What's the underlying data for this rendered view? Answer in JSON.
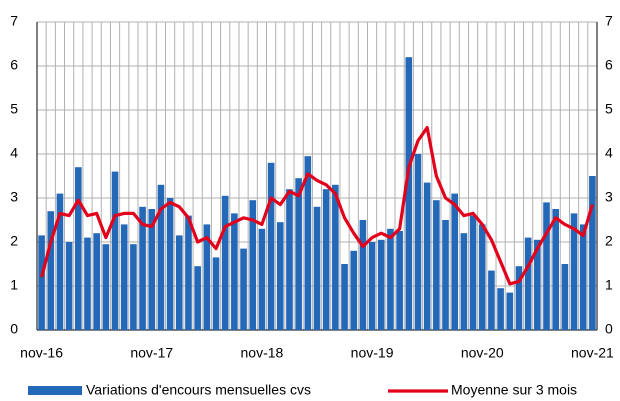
{
  "chart_data": {
    "type": "bar_line",
    "categories": [
      "nov-16",
      null,
      null,
      null,
      null,
      null,
      null,
      null,
      null,
      null,
      null,
      null,
      "nov-17",
      null,
      null,
      null,
      null,
      null,
      null,
      null,
      null,
      null,
      null,
      null,
      "nov-18",
      null,
      null,
      null,
      null,
      null,
      null,
      null,
      null,
      null,
      null,
      null,
      "nov-19",
      null,
      null,
      null,
      null,
      null,
      null,
      null,
      null,
      null,
      null,
      null,
      "nov-20",
      null,
      null,
      null,
      null,
      null,
      null,
      null,
      null,
      null,
      null,
      null,
      "nov-21"
    ],
    "series": [
      {
        "name": "Variations d'encours mensuelles cvs",
        "type": "bar",
        "color": "#2468b8",
        "values": [
          2.15,
          2.7,
          3.1,
          2.0,
          3.7,
          2.1,
          2.2,
          1.95,
          3.6,
          2.4,
          1.95,
          2.8,
          2.75,
          3.3,
          3.0,
          2.15,
          2.6,
          1.45,
          2.4,
          1.65,
          3.05,
          2.65,
          1.85,
          2.95,
          2.3,
          3.8,
          2.45,
          3.2,
          3.45,
          3.95,
          2.8,
          3.2,
          3.3,
          1.5,
          1.8,
          2.5,
          2.0,
          2.05,
          2.3,
          2.25,
          6.2,
          4.0,
          3.35,
          2.95,
          2.5,
          3.1,
          2.2,
          2.6,
          2.4,
          1.35,
          0.95,
          0.85,
          1.45,
          2.1,
          2.05,
          2.9,
          2.75,
          1.5,
          2.65,
          2.4,
          3.5
        ]
      },
      {
        "name": "Moyenne sur 3 mois",
        "type": "line",
        "color": "#e3001b",
        "values": [
          1.2,
          2.0,
          2.65,
          2.6,
          2.95,
          2.6,
          2.65,
          2.1,
          2.6,
          2.65,
          2.65,
          2.4,
          2.35,
          2.75,
          2.9,
          2.8,
          2.55,
          2.0,
          2.1,
          1.85,
          2.35,
          2.45,
          2.55,
          2.5,
          2.4,
          3.0,
          2.85,
          3.15,
          3.05,
          3.55,
          3.4,
          3.3,
          3.1,
          2.55,
          2.2,
          1.9,
          2.1,
          2.2,
          2.1,
          2.3,
          3.7,
          4.3,
          4.6,
          3.5,
          3.0,
          2.85,
          2.6,
          2.65,
          2.4,
          2.05,
          1.55,
          1.05,
          1.1,
          1.45,
          1.85,
          2.2,
          2.55,
          2.4,
          2.3,
          2.15,
          2.85
        ]
      }
    ],
    "ylim": [
      0,
      7
    ],
    "yticks": [
      0,
      1,
      2,
      3,
      4,
      5,
      6,
      7
    ],
    "y2lim": [
      0,
      7
    ],
    "y2ticks": [
      0,
      1,
      2,
      3,
      4,
      5,
      6,
      7
    ],
    "grid": true,
    "legend": "bottom"
  }
}
